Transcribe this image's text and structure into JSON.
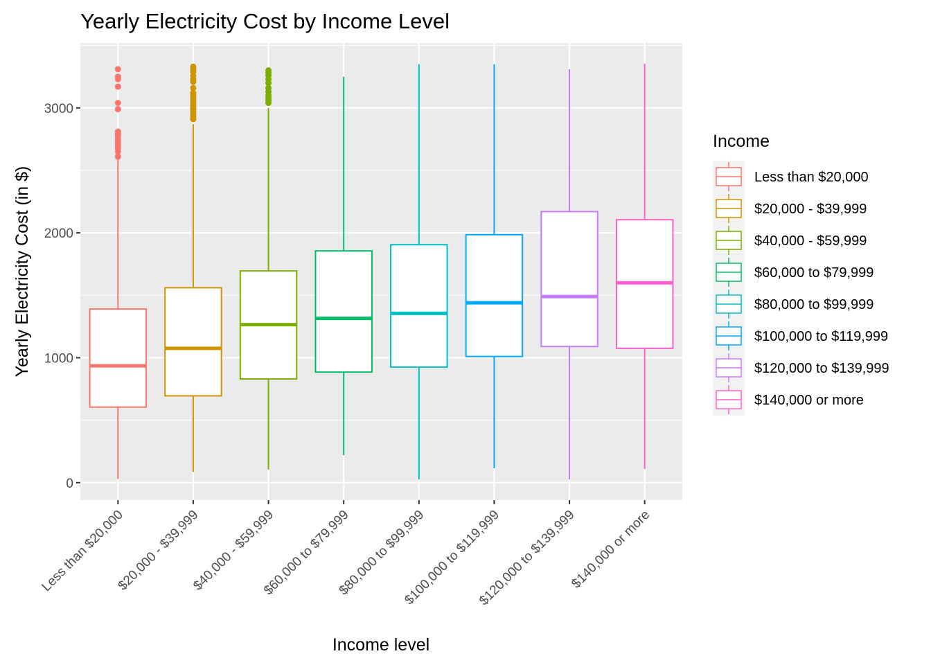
{
  "chart_data": {
    "type": "boxplot",
    "title": "Yearly Electricity Cost by Income Level",
    "xlabel": "Income level",
    "ylabel": "Yearly Electricity Cost (in $)",
    "ylim": [
      -140,
      3520
    ],
    "yticks": [
      0,
      1000,
      2000,
      3000
    ],
    "grid": true,
    "legend": {
      "title": "Income",
      "position": "right"
    },
    "categories": [
      "Less than $20,000",
      "$20,000 - $39,999",
      "$40,000 - $59,999",
      "$60,000 to $79,999",
      "$80,000 to $99,999",
      "$100,000 to $119,999",
      "$120,000 to $139,999",
      "$140,000 or more"
    ],
    "colors": [
      "#F8766D",
      "#CD9600",
      "#7CAE00",
      "#00BE67",
      "#00BFC4",
      "#00A9FF",
      "#C77CFF",
      "#FF61CC"
    ],
    "boxes": [
      {
        "lower_whisker": 30,
        "q1": 605,
        "median": 935,
        "q3": 1390,
        "upper_whisker": 2590,
        "outliers": [
          2610,
          2650,
          2680,
          2700,
          2720,
          2740,
          2770,
          2790,
          2810,
          2990,
          3040,
          3170,
          3230,
          3250,
          3310
        ]
      },
      {
        "lower_whisker": 85,
        "q1": 695,
        "median": 1075,
        "q3": 1560,
        "upper_whisker": 2870,
        "outliers": [
          2910,
          2930,
          2950,
          2970,
          2990,
          3000,
          3020,
          3040,
          3060,
          3080,
          3100,
          3120,
          3160,
          3210,
          3230,
          3260,
          3290,
          3310,
          3330
        ]
      },
      {
        "lower_whisker": 105,
        "q1": 830,
        "median": 1265,
        "q3": 1695,
        "upper_whisker": 3000,
        "outliers": [
          3040,
          3060,
          3080,
          3100,
          3130,
          3160,
          3200,
          3230,
          3260,
          3280,
          3300
        ]
      },
      {
        "lower_whisker": 220,
        "q1": 885,
        "median": 1315,
        "q3": 1855,
        "upper_whisker": 3250,
        "outliers": []
      },
      {
        "lower_whisker": 25,
        "q1": 925,
        "median": 1355,
        "q3": 1905,
        "upper_whisker": 3350,
        "outliers": []
      },
      {
        "lower_whisker": 115,
        "q1": 1010,
        "median": 1440,
        "q3": 1985,
        "upper_whisker": 3350,
        "outliers": []
      },
      {
        "lower_whisker": 25,
        "q1": 1090,
        "median": 1490,
        "q3": 2170,
        "upper_whisker": 3310,
        "outliers": []
      },
      {
        "lower_whisker": 110,
        "q1": 1075,
        "median": 1600,
        "q3": 2105,
        "upper_whisker": 3355,
        "outliers": []
      }
    ]
  }
}
